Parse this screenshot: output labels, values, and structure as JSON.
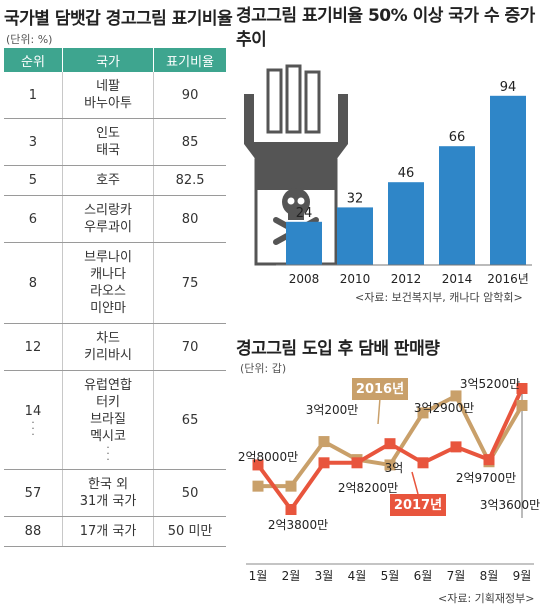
{
  "table": {
    "title": "국가별 담뱃갑 경고그림 표기비율",
    "unit": "(단위: %)",
    "headers": {
      "rank": "순위",
      "country": "국가",
      "ratio": "표기비율"
    },
    "rows": [
      {
        "rank": "1",
        "countries": [
          "네팔",
          "바누아투"
        ],
        "ratio": "90"
      },
      {
        "rank": "3",
        "countries": [
          "인도",
          "태국"
        ],
        "ratio": "85"
      },
      {
        "rank": "5",
        "countries": [
          "호주"
        ],
        "ratio": "82.5"
      },
      {
        "rank": "6",
        "countries": [
          "스리랑카",
          "우루과이"
        ],
        "ratio": "80"
      },
      {
        "rank": "8",
        "countries": [
          "브루나이",
          "캐나다",
          "라오스",
          "미얀마"
        ],
        "ratio": "75"
      },
      {
        "rank": "12",
        "countries": [
          "차드",
          "키리바시"
        ],
        "ratio": "70"
      },
      {
        "rank": "14",
        "countries": [
          "유럽연합",
          "터키",
          "브라질",
          "멕시코"
        ],
        "ratio": "65",
        "ellipsis": true
      },
      {
        "rank": "57",
        "countries": [
          "한국 외",
          "31개 국가"
        ],
        "ratio": "50"
      },
      {
        "rank": "88",
        "countries": [
          "17개 국가"
        ],
        "ratio": "50 미만"
      }
    ]
  },
  "bar_panel": {
    "title": "경고그림 표기비율 50% 이상 국가 수 증가 추이",
    "source": "<자료: 보건복지부, 캐나다 암학회>"
  },
  "line_panel": {
    "title": "경고그림 도입 후 담배 판매량",
    "unit": "(단위: 갑)",
    "source": "<자료: 기획재정부>"
  },
  "colors": {
    "table_header": "#3ea58f",
    "bar": "#2f86c8",
    "line_2016": "#c9a06a",
    "line_2017": "#e8553d",
    "illustration": "#555555"
  },
  "icons": [
    "cigarette-pack-skull-icon"
  ],
  "chart_data": [
    {
      "type": "bar",
      "categories": [
        "2008",
        "2010",
        "2012",
        "2014",
        "2016년"
      ],
      "values": [
        24,
        32,
        46,
        66,
        94
      ],
      "title": "경고그림 표기비율 50% 이상 국가 수 증가 추이",
      "grid": false
    },
    {
      "type": "line",
      "title": "경고그림 도입 후 담배 판매량",
      "unit": "(단위: 갑)",
      "categories": [
        "1월",
        "2월",
        "3월",
        "4월",
        "5월",
        "6월",
        "7월",
        "8월",
        "9월"
      ],
      "series": [
        {
          "name": "2016년",
          "values": [
            260000000,
            260000000,
            302000000,
            285000000,
            280000000,
            329000000,
            345000000,
            283000000,
            336000000
          ]
        },
        {
          "name": "2017년",
          "values": [
            280000000,
            238000000,
            282000000,
            282000000,
            300000000,
            282000000,
            297000000,
            285000000,
            352000000
          ]
        }
      ],
      "annotations": [
        "2억8000만",
        "2억3800만",
        "3억200만",
        "2억8200만",
        "3억",
        "3억2900만",
        "2억9700만",
        "3억5200만",
        "3억3600만"
      ],
      "grid": false,
      "legend": "inline"
    }
  ]
}
